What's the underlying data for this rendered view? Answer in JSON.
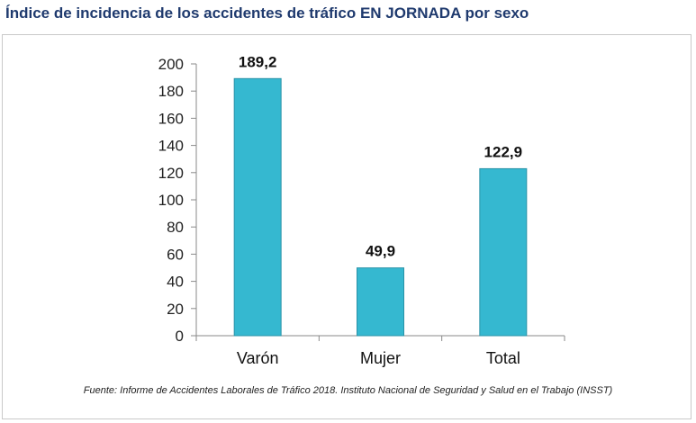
{
  "title": "Índice de incidencia de los accidentes de tráfico EN JORNADA por sexo",
  "source": "Fuente: Informe de Accidentes Laborales de Tráfico 2018. Instituto Nacional de Seguridad y Salud en el Trabajo (INSST)",
  "colors": {
    "bar": "#35b8d0",
    "bar_stroke": "#2a93a8",
    "title": "#1f3a6e"
  },
  "chart_data": {
    "type": "bar",
    "title": "Índice de incidencia de los accidentes de tráfico EN JORNADA por sexo",
    "categories": [
      "Varón",
      "Mujer",
      "Total"
    ],
    "values": [
      189.2,
      49.9,
      122.9
    ],
    "value_labels": [
      "189,2",
      "49,9",
      "122,9"
    ],
    "ylim": [
      0,
      200
    ],
    "yticks": [
      0,
      20,
      40,
      60,
      80,
      100,
      120,
      140,
      160,
      180,
      200
    ],
    "grid": false,
    "legend": "none"
  }
}
